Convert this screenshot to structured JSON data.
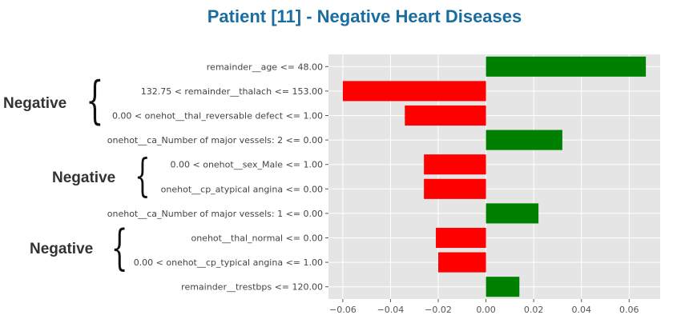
{
  "title": "Patient [11] - Negative Heart Diseases",
  "chart_data": {
    "type": "bar",
    "orientation": "horizontal",
    "categories": [
      "remainder__age <= 48.00",
      "132.75 < remainder__thalach <= 153.00",
      "0.00 < onehot__thal_reversable defect <= 1.00",
      "onehot__ca_Number of major vessels: 2 <= 0.00",
      "0.00 < onehot__sex_Male <= 1.00",
      "onehot__cp_atypical angina <= 0.00",
      "onehot__ca_Number of major vessels: 1 <= 0.00",
      "onehot__thal_normal <= 0.00",
      "0.00 < onehot__cp_typical angina <= 1.00",
      "remainder__trestbps <= 120.00"
    ],
    "values": [
      0.067,
      -0.06,
      -0.034,
      0.032,
      -0.026,
      -0.026,
      0.022,
      -0.021,
      -0.02,
      0.014
    ],
    "xlim": [
      -0.066,
      0.073
    ],
    "xticks": [
      -0.06,
      -0.04,
      -0.02,
      0.0,
      0.02,
      0.04,
      0.06
    ],
    "xtick_labels": [
      "−0.06",
      "−0.04",
      "−0.02",
      "0.00",
      "0.02",
      "0.04",
      "0.06"
    ],
    "positive_color": "#008000",
    "negative_color": "#ff0000",
    "grid": true
  },
  "annotations": [
    {
      "label": "Negative",
      "brace": "{"
    },
    {
      "label": "Negative",
      "brace": "{"
    },
    {
      "label": "Negative",
      "brace": "{"
    }
  ]
}
